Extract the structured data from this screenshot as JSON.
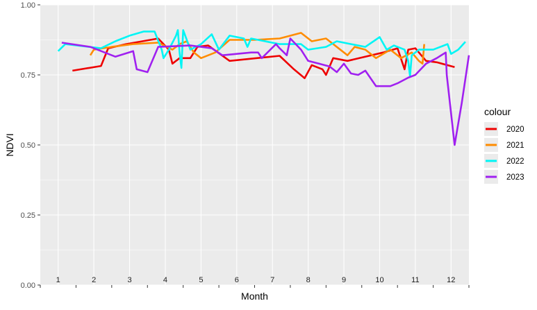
{
  "chart_data": {
    "type": "line",
    "title": "",
    "xlabel": "Month",
    "ylabel": "NDVI",
    "ylim": [
      0,
      1
    ],
    "y_ticks": [
      "0.00",
      "0.25",
      "0.50",
      "0.75",
      "1.00"
    ],
    "x_month_labels": [
      "1",
      "2",
      "3",
      "4",
      "5",
      "6",
      "7",
      "8",
      "9",
      "10",
      "11",
      "12"
    ],
    "grid": true,
    "legend": {
      "title": "colour",
      "placement": "right"
    },
    "series": [
      {
        "name": "2020",
        "color": "#ee0000",
        "points": [
          [
            1.4,
            0.765
          ],
          [
            2.2,
            0.782
          ],
          [
            2.4,
            0.845
          ],
          [
            2.9,
            0.86
          ],
          [
            3.8,
            0.88
          ],
          [
            4.1,
            0.84
          ],
          [
            4.2,
            0.79
          ],
          [
            4.4,
            0.81
          ],
          [
            4.7,
            0.81
          ],
          [
            4.9,
            0.85
          ],
          [
            5.2,
            0.855
          ],
          [
            5.8,
            0.8
          ],
          [
            7.2,
            0.818
          ],
          [
            7.6,
            0.77
          ],
          [
            7.9,
            0.738
          ],
          [
            8.1,
            0.785
          ],
          [
            8.4,
            0.77
          ],
          [
            8.5,
            0.75
          ],
          [
            8.7,
            0.81
          ],
          [
            9.1,
            0.8
          ],
          [
            10.1,
            0.83
          ],
          [
            10.5,
            0.845
          ],
          [
            10.7,
            0.77
          ],
          [
            10.8,
            0.84
          ],
          [
            11.0,
            0.845
          ],
          [
            11.3,
            0.8
          ],
          [
            11.6,
            0.795
          ],
          [
            12.1,
            0.778
          ]
        ]
      },
      {
        "name": "2021",
        "color": "#ff8c00",
        "points": [
          [
            1.9,
            0.82
          ],
          [
            2.0,
            0.84
          ],
          [
            2.5,
            0.85
          ],
          [
            3.1,
            0.86
          ],
          [
            3.8,
            0.865
          ],
          [
            4.2,
            0.84
          ],
          [
            4.4,
            0.86
          ],
          [
            4.6,
            0.87
          ],
          [
            4.8,
            0.83
          ],
          [
            5.0,
            0.81
          ],
          [
            5.4,
            0.83
          ],
          [
            5.8,
            0.875
          ],
          [
            6.5,
            0.875
          ],
          [
            7.2,
            0.88
          ],
          [
            7.8,
            0.9
          ],
          [
            8.1,
            0.87
          ],
          [
            8.5,
            0.88
          ],
          [
            9.1,
            0.82
          ],
          [
            9.3,
            0.85
          ],
          [
            9.6,
            0.84
          ],
          [
            9.9,
            0.81
          ],
          [
            10.3,
            0.84
          ],
          [
            10.6,
            0.81
          ],
          [
            10.9,
            0.83
          ],
          [
            11.1,
            0.8
          ],
          [
            11.2,
            0.79
          ],
          [
            11.25,
            0.86
          ]
        ]
      },
      {
        "name": "2022",
        "color": "#00f5f5",
        "points": [
          [
            1.0,
            0.835
          ],
          [
            1.2,
            0.86
          ],
          [
            2.2,
            0.845
          ],
          [
            2.6,
            0.87
          ],
          [
            3.0,
            0.89
          ],
          [
            3.4,
            0.905
          ],
          [
            3.7,
            0.905
          ],
          [
            3.9,
            0.84
          ],
          [
            3.95,
            0.81
          ],
          [
            4.1,
            0.84
          ],
          [
            4.3,
            0.89
          ],
          [
            4.35,
            0.91
          ],
          [
            4.4,
            0.83
          ],
          [
            4.45,
            0.775
          ],
          [
            4.5,
            0.91
          ],
          [
            4.7,
            0.84
          ],
          [
            5.0,
            0.86
          ],
          [
            5.3,
            0.895
          ],
          [
            5.5,
            0.84
          ],
          [
            5.8,
            0.89
          ],
          [
            6.2,
            0.88
          ],
          [
            6.3,
            0.85
          ],
          [
            6.4,
            0.88
          ],
          [
            7.2,
            0.86
          ],
          [
            7.8,
            0.86
          ],
          [
            8.0,
            0.84
          ],
          [
            8.5,
            0.85
          ],
          [
            8.8,
            0.87
          ],
          [
            9.2,
            0.86
          ],
          [
            9.6,
            0.85
          ],
          [
            10.0,
            0.885
          ],
          [
            10.2,
            0.84
          ],
          [
            10.4,
            0.855
          ],
          [
            10.7,
            0.84
          ],
          [
            10.8,
            0.8
          ],
          [
            10.85,
            0.745
          ],
          [
            10.9,
            0.82
          ],
          [
            11.1,
            0.84
          ],
          [
            11.5,
            0.84
          ],
          [
            11.9,
            0.86
          ],
          [
            12.0,
            0.825
          ],
          [
            12.2,
            0.84
          ],
          [
            12.4,
            0.868
          ]
        ]
      },
      {
        "name": "2023",
        "color": "#a020f0",
        "points": [
          [
            1.1,
            0.865
          ],
          [
            1.9,
            0.85
          ],
          [
            2.6,
            0.815
          ],
          [
            3.1,
            0.835
          ],
          [
            3.2,
            0.77
          ],
          [
            3.5,
            0.76
          ],
          [
            3.8,
            0.85
          ],
          [
            4.7,
            0.855
          ],
          [
            5.3,
            0.845
          ],
          [
            5.6,
            0.82
          ],
          [
            6.4,
            0.83
          ],
          [
            6.6,
            0.83
          ],
          [
            6.7,
            0.81
          ],
          [
            7.1,
            0.86
          ],
          [
            7.2,
            0.845
          ],
          [
            7.4,
            0.82
          ],
          [
            7.5,
            0.88
          ],
          [
            7.8,
            0.84
          ],
          [
            8.0,
            0.8
          ],
          [
            8.3,
            0.79
          ],
          [
            8.6,
            0.78
          ],
          [
            8.8,
            0.76
          ],
          [
            9.0,
            0.79
          ],
          [
            9.2,
            0.755
          ],
          [
            9.4,
            0.75
          ],
          [
            9.6,
            0.765
          ],
          [
            9.9,
            0.71
          ],
          [
            10.3,
            0.71
          ],
          [
            10.5,
            0.72
          ],
          [
            10.8,
            0.74
          ],
          [
            11.0,
            0.75
          ],
          [
            11.3,
            0.79
          ],
          [
            11.6,
            0.81
          ],
          [
            11.85,
            0.83
          ],
          [
            11.88,
            0.75
          ],
          [
            12.1,
            0.5
          ],
          [
            12.3,
            0.65
          ],
          [
            12.5,
            0.82
          ]
        ]
      }
    ]
  }
}
